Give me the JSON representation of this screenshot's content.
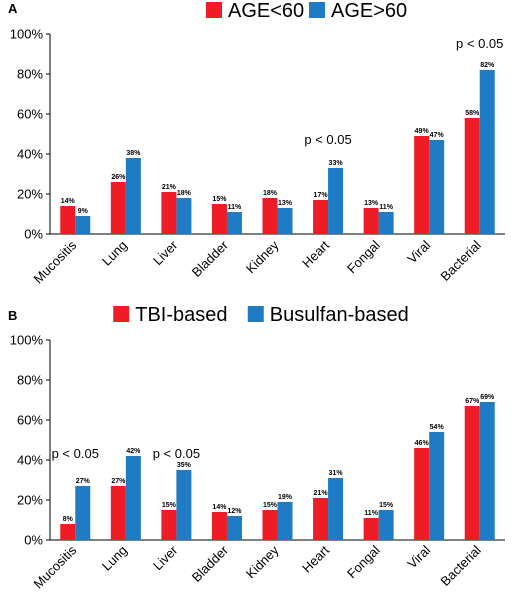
{
  "chart_data": [
    {
      "panel": "A",
      "type": "bar",
      "categories": [
        "Mucositis",
        "Lung",
        "Liver",
        "Bladder",
        "Kidney",
        "Heart",
        "Fongal",
        "Viral",
        "Bacterial"
      ],
      "series": [
        {
          "name": "AGE<60",
          "color": "#ee1c24",
          "values": [
            14,
            26,
            21,
            15,
            18,
            17,
            13,
            49,
            58
          ],
          "labels": [
            "14%",
            "26%",
            "21%",
            "15%",
            "18%",
            "17%",
            "13%",
            "49%",
            "58%"
          ]
        },
        {
          "name": "AGE>60",
          "color": "#1f7bc4",
          "values": [
            9,
            38,
            18,
            11,
            13,
            33,
            11,
            47,
            82
          ],
          "labels": [
            "9%",
            "38%",
            "18%",
            "11%",
            "13%",
            "33%",
            "11%",
            "47%",
            "82%"
          ]
        }
      ],
      "yticks": [
        "0%",
        "20%",
        "40%",
        "60%",
        "80%",
        "100%"
      ],
      "ylim": [
        0,
        100
      ],
      "legend_position": "top",
      "annotations": [
        {
          "text": "p < 0.05",
          "category": "Heart",
          "value": 45
        },
        {
          "text": "p < 0.05",
          "category": "Bacterial",
          "value": 93
        }
      ]
    },
    {
      "panel": "B",
      "type": "bar",
      "categories": [
        "Mucositis",
        "Lung",
        "Liver",
        "Bladder",
        "Kidney",
        "Heart",
        "Fongal",
        "Viral",
        "Bacterial"
      ],
      "series": [
        {
          "name": "TBI-based",
          "color": "#ee1c24",
          "values": [
            8,
            27,
            15,
            14,
            15,
            21,
            11,
            46,
            67
          ],
          "labels": [
            "8%",
            "27%",
            "15%",
            "14%",
            "15%",
            "21%",
            "11%",
            "46%",
            "67%"
          ]
        },
        {
          "name": "Busulfan-based",
          "color": "#1f7bc4",
          "values": [
            27,
            42,
            35,
            12,
            19,
            31,
            15,
            54,
            69
          ],
          "labels": [
            "27%",
            "42%",
            "35%",
            "12%",
            "19%",
            "31%",
            "15%",
            "54%",
            "69%"
          ]
        }
      ],
      "yticks": [
        "0%",
        "20%",
        "40%",
        "60%",
        "80%",
        "100%"
      ],
      "ylim": [
        0,
        100
      ],
      "legend_position": "top",
      "annotations": [
        {
          "text": "p < 0.05",
          "category": "Mucositis",
          "value": 41
        },
        {
          "text": "p < 0.05",
          "category": "Liver",
          "value": 41
        }
      ]
    }
  ]
}
